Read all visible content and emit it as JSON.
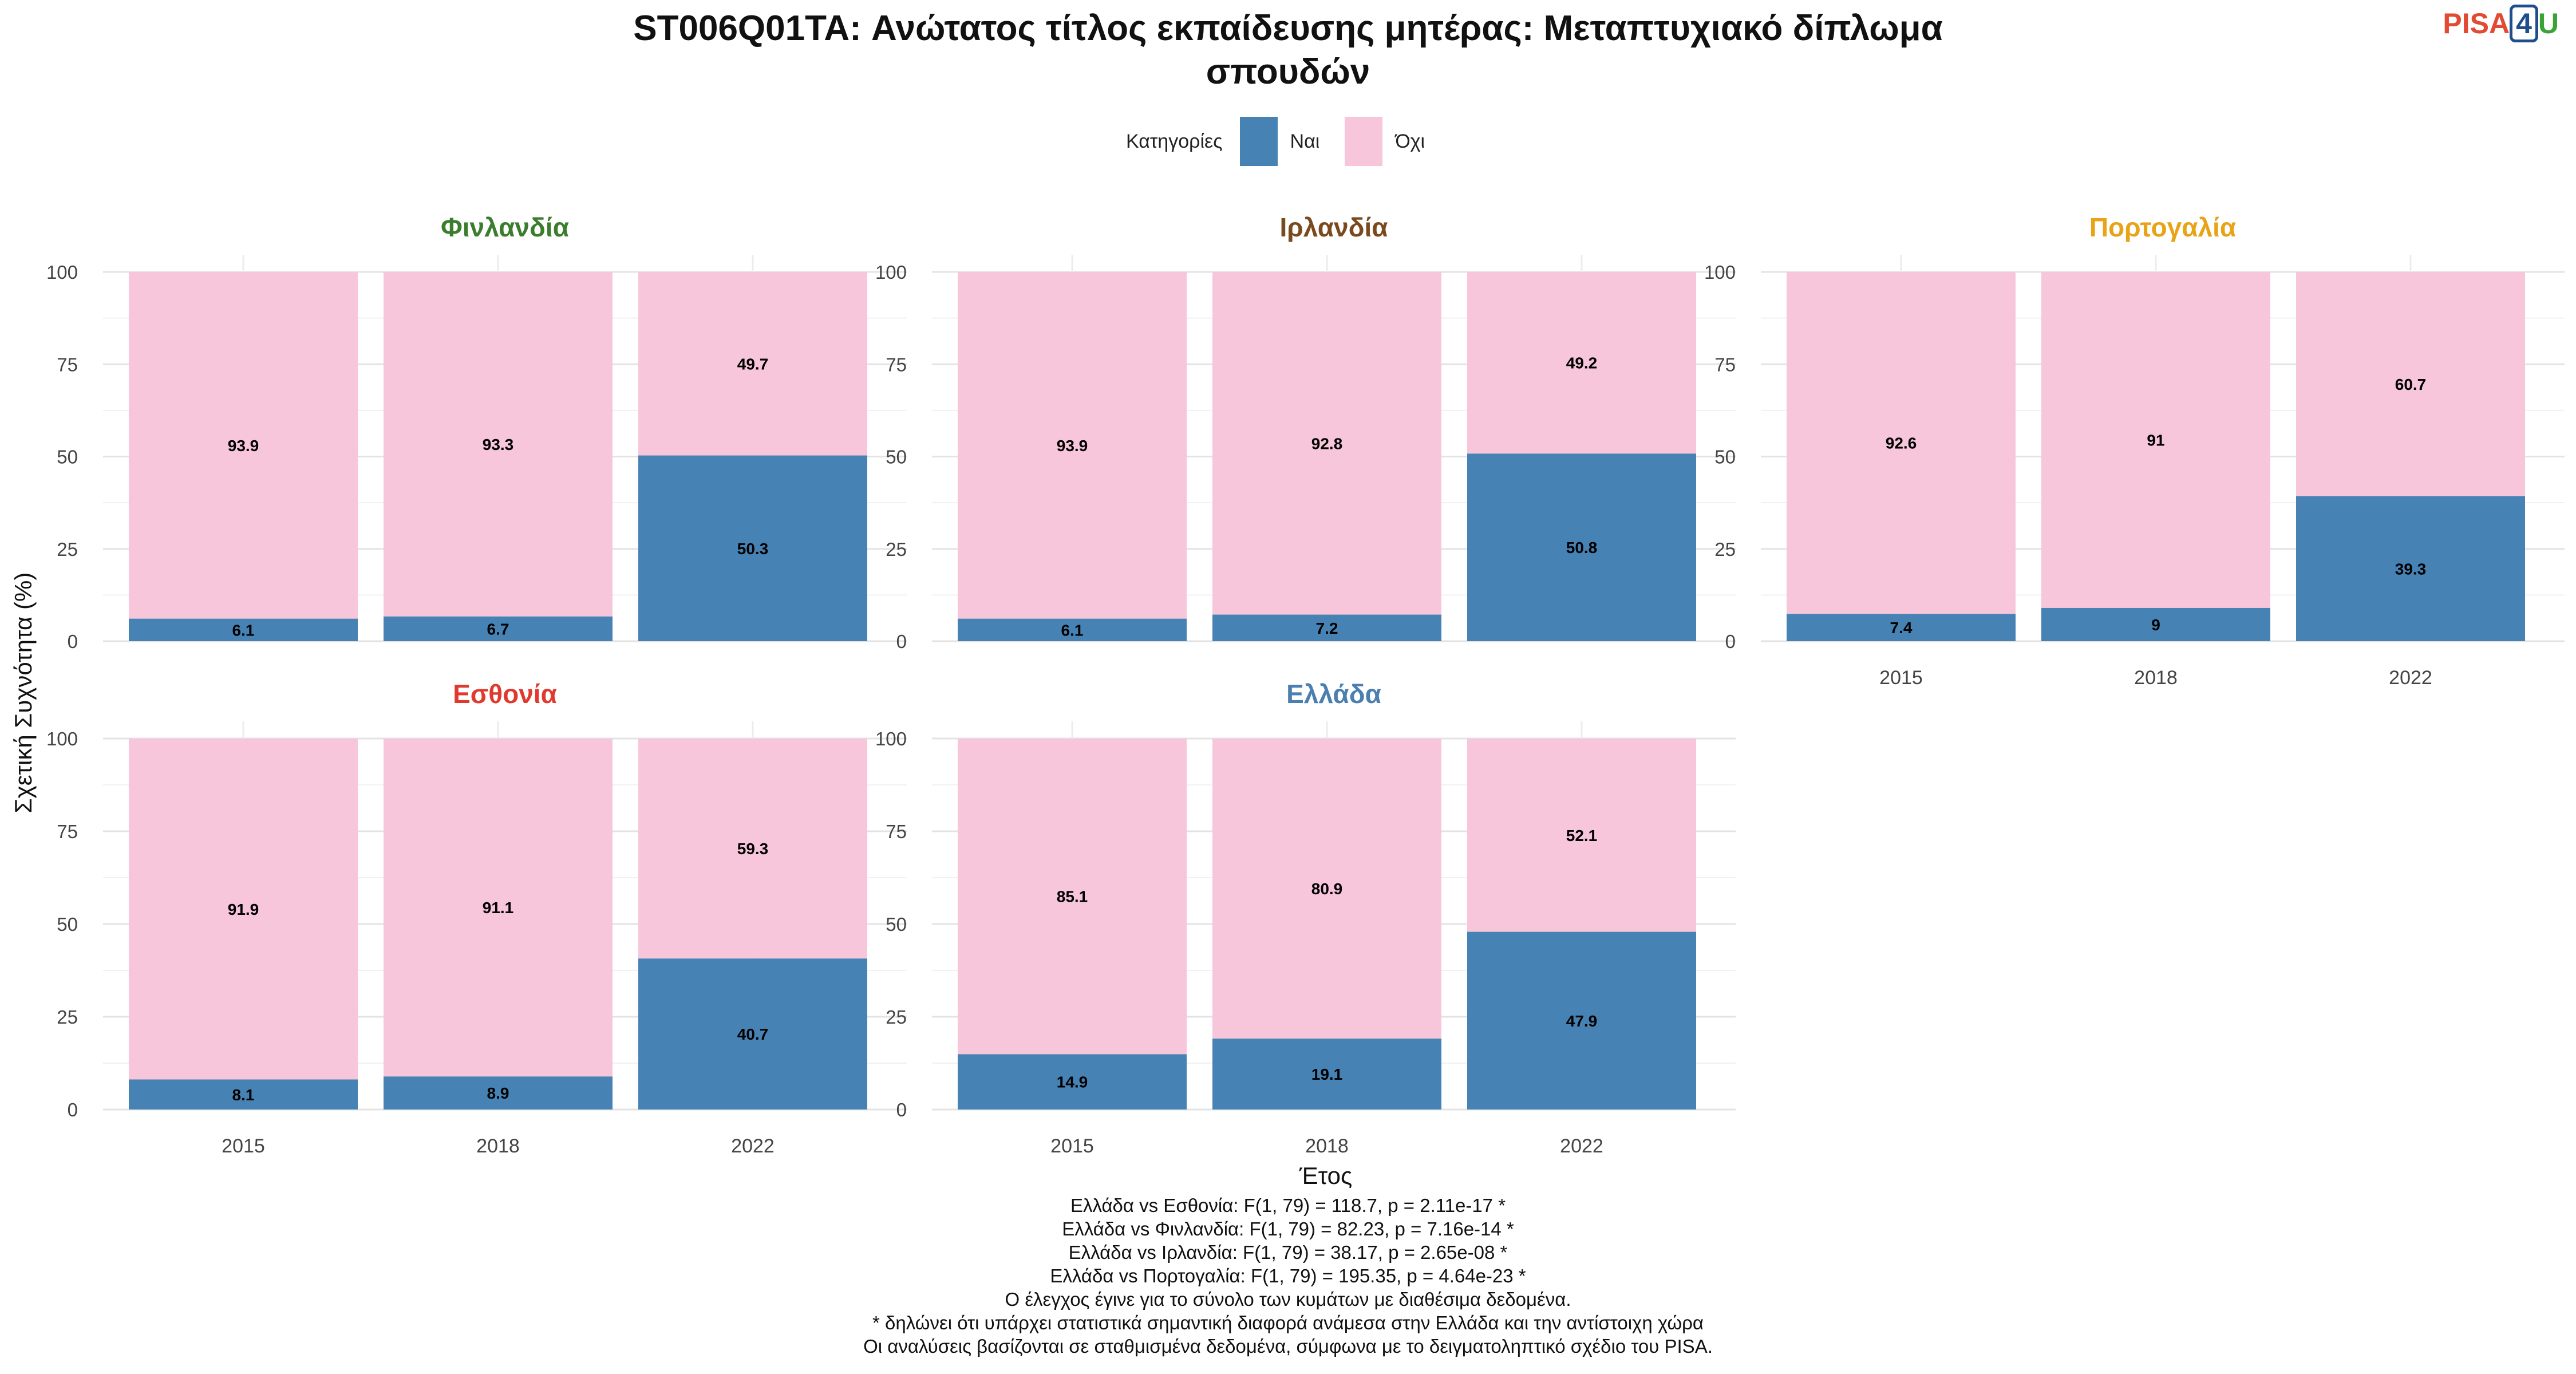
{
  "title_line1": "ST006Q01TA: Ανώτατος τίτλος εκπαίδευσης μητέρας: Μεταπτυχιακό δίπλωμα",
  "title_line2": "σπουδών",
  "logo": {
    "part1": "PISA",
    "part2": "4",
    "part3": "U"
  },
  "legend": {
    "title": "Κατηγορίες",
    "items": [
      {
        "label": "Ναι",
        "color": "#4682b4"
      },
      {
        "label": "Όχι",
        "color": "#f7c6da"
      }
    ]
  },
  "footer_lines": [
    "Ελλάδα vs Εσθονία: F(1, 79) = 118.7, p = 2.11e-17 *",
    "Ελλάδα vs Φινλανδία: F(1, 79) = 82.23, p = 7.16e-14 *",
    "Ελλάδα vs Ιρλανδία: F(1, 79) = 38.17, p = 2.65e-08 *",
    "Ελλάδα vs Πορτογαλία: F(1, 79) = 195.35, p = 4.64e-23 *",
    "Ο έλεγχος έγινε για το σύνολο των κυμάτων με διαθέσιμα δεδομένα.",
    "* δηλώνει ότι υπάρχει στατιστικά σημαντική διαφορά ανάμεσα στην Ελλάδα και την αντίστοιχη χώρα",
    "Οι αναλύσεις βασίζονται σε σταθμισμένα δεδομένα, σύμφωνα με το δειγματοληπτικό σχέδιο του PISA."
  ],
  "chart_data": {
    "type": "bar",
    "stacked": true,
    "xlabel": "Έτος",
    "ylabel": "Σχετική Συχνότητα (%)",
    "ylim": [
      0,
      100
    ],
    "yticks": [
      0,
      25,
      50,
      75,
      100
    ],
    "categories": [
      "2015",
      "2018",
      "2022"
    ],
    "series_colors": {
      "Ναι": "#4682b4",
      "Όχι": "#f7c6da"
    },
    "panels": [
      {
        "country": "Φινλανδία",
        "color": "#3a7d2c",
        "series": [
          {
            "name": "Ναι",
            "values": [
              6.1,
              6.7,
              50.3
            ]
          },
          {
            "name": "Όχι",
            "values": [
              93.9,
              93.3,
              49.7
            ]
          }
        ]
      },
      {
        "country": "Ιρλανδία",
        "color": "#7a4a1e",
        "series": [
          {
            "name": "Ναι",
            "values": [
              6.1,
              7.2,
              50.8
            ]
          },
          {
            "name": "Όχι",
            "values": [
              93.9,
              92.8,
              49.2
            ]
          }
        ]
      },
      {
        "country": "Πορτογαλία",
        "color": "#e8a317",
        "series": [
          {
            "name": "Ναι",
            "values": [
              7.4,
              9,
              39.3
            ]
          },
          {
            "name": "Όχι",
            "values": [
              92.6,
              91,
              60.7
            ]
          }
        ]
      },
      {
        "country": "Εσθονία",
        "color": "#e03a2f",
        "series": [
          {
            "name": "Ναι",
            "values": [
              8.1,
              8.9,
              40.7
            ]
          },
          {
            "name": "Όχι",
            "values": [
              91.9,
              91.1,
              59.3
            ]
          }
        ]
      },
      {
        "country": "Ελλάδα",
        "color": "#4a7fb0",
        "series": [
          {
            "name": "Ναι",
            "values": [
              14.9,
              19.1,
              47.9
            ]
          },
          {
            "name": "Όχι",
            "values": [
              85.1,
              80.9,
              52.1
            ]
          }
        ]
      }
    ]
  }
}
